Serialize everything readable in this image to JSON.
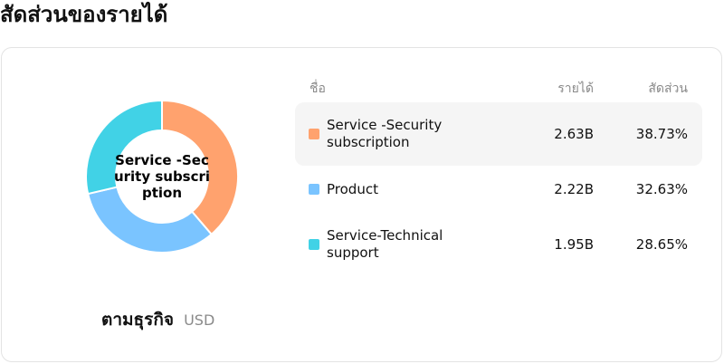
{
  "page": {
    "title": "สัดส่วนของรายได้"
  },
  "donut": {
    "center_label": "Service -Security subscription"
  },
  "footer": {
    "segment_label": "ตามธุรกิจ",
    "currency": "USD"
  },
  "table": {
    "headers": {
      "name": "ชื่อ",
      "revenue": "รายได้",
      "share": "สัดส่วน"
    },
    "rows": [
      {
        "name": "Service -Security subscription",
        "revenue": "2.63B",
        "share": "38.73%",
        "color": "#FFA26E"
      },
      {
        "name": "Product",
        "revenue": "2.22B",
        "share": "32.63%",
        "color": "#7AC4FF"
      },
      {
        "name": "Service-Technical support",
        "revenue": "1.95B",
        "share": "28.65%",
        "color": "#41D2E6"
      }
    ]
  },
  "chart_data": {
    "type": "pie",
    "subtype": "donut",
    "title": "สัดส่วนของรายได้",
    "categories": [
      "Service -Security subscription",
      "Product",
      "Service-Technical support"
    ],
    "values": [
      38.73,
      32.63,
      28.65
    ],
    "revenue": [
      "2.63B",
      "2.22B",
      "1.95B"
    ],
    "colors": [
      "#FFA26E",
      "#7AC4FF",
      "#41D2E6"
    ],
    "unit": "USD"
  }
}
